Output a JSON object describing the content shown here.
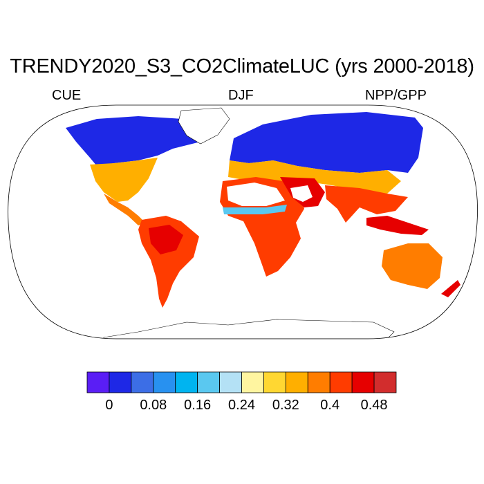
{
  "title": "TRENDY2020_S3_CO2ClimateLUC (yrs 2000-2018)",
  "left_label": "CUE",
  "center_label": "DJF",
  "right_label": "NPP/GPP",
  "colorbar": {
    "colors": [
      "#5a1ef5",
      "#1e28e6",
      "#3c6ee6",
      "#2891f0",
      "#00b4f0",
      "#5ac8f0",
      "#b4e1f5",
      "#fff5a0",
      "#ffd732",
      "#ffaf00",
      "#ff7d00",
      "#ff3c00",
      "#e60000",
      "#d22d2d"
    ],
    "tick_labels": [
      "0",
      "0.08",
      "0.16",
      "0.24",
      "0.32",
      "0.4",
      "0.48"
    ],
    "tick_values": [
      0,
      0.08,
      0.16,
      0.24,
      0.32,
      0.4,
      0.48
    ],
    "levels": [
      -0.04,
      0,
      0.04,
      0.08,
      0.12,
      0.16,
      0.2,
      0.24,
      0.28,
      0.32,
      0.36,
      0.4,
      0.44,
      0.48,
      0.52
    ]
  }
}
